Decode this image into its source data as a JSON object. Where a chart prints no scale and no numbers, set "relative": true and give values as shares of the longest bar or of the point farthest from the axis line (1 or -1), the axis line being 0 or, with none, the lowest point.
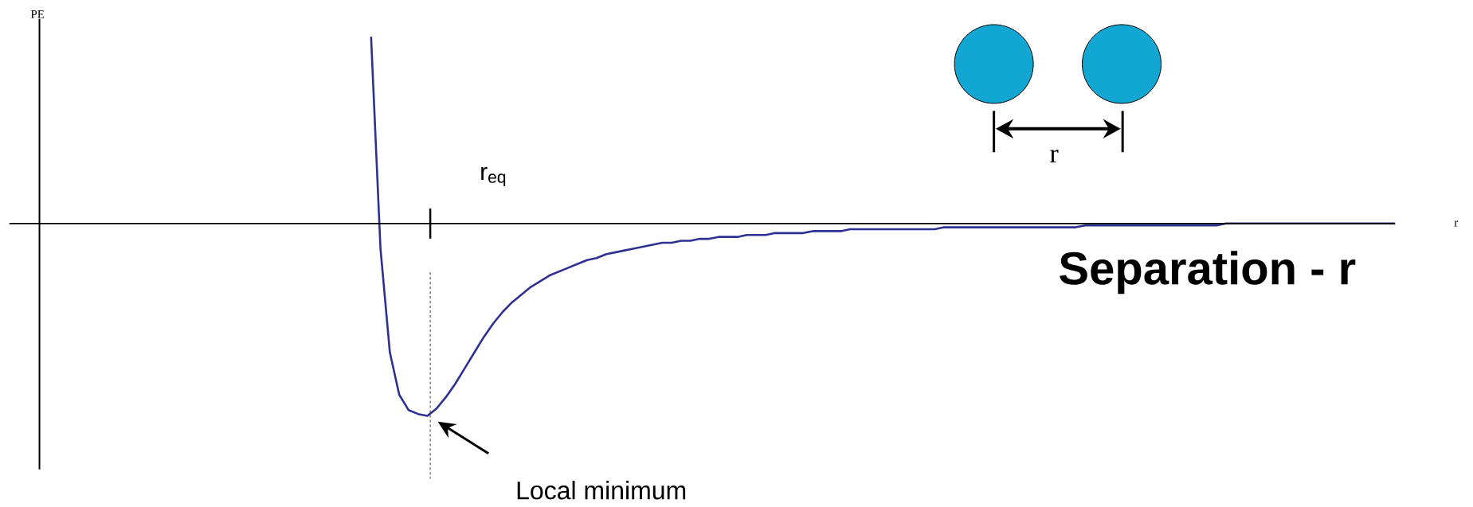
{
  "chart_data": {
    "type": "line",
    "relative": true,
    "xlabel": "r",
    "ylabel": "PE",
    "categories": [
      null,
      null,
      null,
      null,
      null,
      null,
      null,
      null,
      null,
      null,
      null,
      null,
      null,
      null,
      null,
      null,
      null,
      null,
      null,
      null,
      null,
      null,
      null,
      null,
      null,
      null,
      null,
      null,
      null,
      null,
      null,
      null,
      null,
      null,
      null,
      null,
      null,
      null,
      null,
      null,
      null,
      null,
      null,
      null,
      null,
      null,
      null,
      null,
      null,
      null,
      null,
      null,
      null,
      null,
      null,
      null,
      null,
      null,
      null,
      null,
      null,
      null,
      null,
      null,
      null,
      null,
      null,
      null,
      null,
      null,
      null,
      null,
      null,
      null,
      null,
      null,
      null,
      null,
      null,
      null,
      null,
      null,
      null,
      null,
      null,
      null,
      null,
      null,
      null,
      null,
      null,
      null,
      null,
      null,
      null,
      null,
      null,
      null,
      null,
      null,
      null,
      null,
      null,
      null,
      null,
      null,
      null,
      null,
      null,
      null,
      null,
      null,
      null,
      null,
      null,
      null,
      null,
      null,
      null,
      null,
      null,
      null,
      null,
      null,
      null,
      null,
      null,
      null,
      null,
      null,
      null,
      null,
      null,
      null,
      null,
      null,
      null,
      null,
      null,
      null,
      null,
      null,
      null,
      null,
      null
    ],
    "series": [
      {
        "color": "#2e3192",
        "values": [
          null,
          null,
          null,
          null,
          null,
          null,
          null,
          null,
          null,
          null,
          null,
          null,
          null,
          null,
          null,
          null,
          null,
          null,
          null,
          null,
          null,
          null,
          null,
          null,
          null,
          null,
          null,
          null,
          null,
          null,
          null,
          null,
          null,
          null,
          null,
          0.97,
          -0.13,
          -0.67,
          -0.89,
          -0.97,
          -0.99,
          -1,
          -0.96,
          -0.9,
          -0.83,
          -0.75,
          -0.67,
          -0.59,
          -0.52,
          -0.46,
          -0.41,
          -0.37,
          -0.33,
          -0.3,
          -0.27,
          -0.25,
          -0.23,
          -0.21,
          -0.19,
          -0.18,
          -0.16,
          -0.15,
          -0.14,
          -0.13,
          -0.12,
          -0.11,
          -0.1,
          -0.1,
          -0.09,
          -0.09,
          -0.08,
          -0.08,
          -0.07,
          -0.07,
          -0.07,
          -0.06,
          -0.06,
          -0.06,
          -0.05,
          -0.05,
          -0.05,
          -0.05,
          -0.04,
          -0.04,
          -0.04,
          -0.04,
          -0.03,
          -0.03,
          -0.03,
          -0.03,
          -0.03,
          -0.03,
          -0.03,
          -0.03,
          -0.03,
          -0.03,
          -0.02,
          -0.02,
          -0.02,
          -0.02,
          -0.02,
          -0.02,
          -0.02,
          -0.02,
          -0.02,
          -0.02,
          -0.02,
          -0.02,
          -0.02,
          -0.02,
          -0.02,
          -0.01,
          -0.01,
          -0.01,
          -0.01,
          -0.01,
          -0.01,
          -0.01,
          -0.01,
          -0.01,
          -0.01,
          -0.01,
          -0.01,
          -0.01,
          -0.01,
          -0.01,
          0,
          0,
          0,
          0,
          0,
          0,
          0,
          0,
          0,
          0,
          0,
          0,
          0,
          0,
          0,
          0,
          0,
          0,
          0
        ]
      }
    ],
    "annotations": [
      "Separation - r",
      "Local minimum",
      "r",
      "r$_{eq}$"
    ]
  }
}
